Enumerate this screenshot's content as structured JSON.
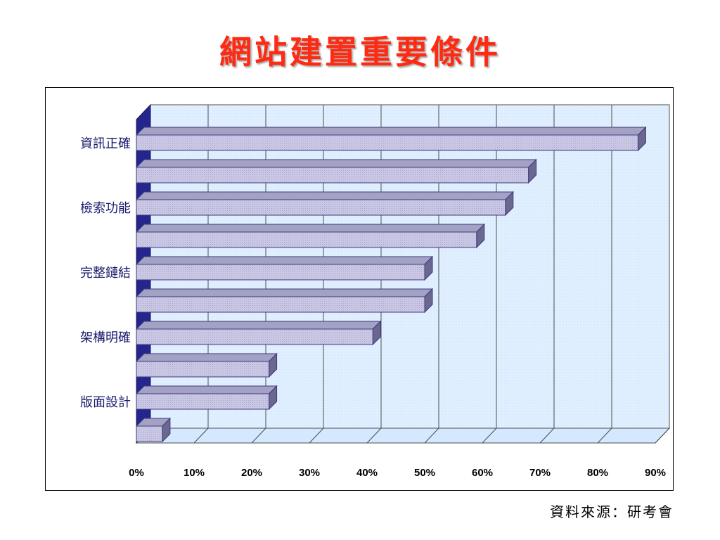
{
  "slide": {
    "title": "網站建置重要條件",
    "source_note": "資料來源：研考會"
  },
  "chart_data": {
    "type": "bar",
    "orientation": "horizontal",
    "three_d": true,
    "title": "",
    "xlabel": "",
    "ylabel": "",
    "xlim": [
      0,
      90
    ],
    "x_ticks": [
      "0%",
      "10%",
      "20%",
      "30%",
      "40%",
      "50%",
      "60%",
      "70%",
      "80%",
      "90%"
    ],
    "categories": [
      "資訊正確",
      "",
      "檢索功能",
      "",
      "完整鏈結",
      "",
      "架構明確",
      "",
      "版面設計",
      ""
    ],
    "values": [
      87,
      68,
      64,
      59,
      50,
      50,
      41,
      23,
      23,
      4.5
    ],
    "grid": true,
    "legend": "none",
    "colors": {
      "bar_front": "#c9c7e4",
      "bar_top": "#a4a2c4",
      "bar_side": "#6a6890",
      "bar_outline": "#3d3a7a",
      "wall": "#e0efff",
      "floor": "#d4e9ff",
      "left_wall": "#25258e",
      "category_text": "#17176b"
    }
  }
}
